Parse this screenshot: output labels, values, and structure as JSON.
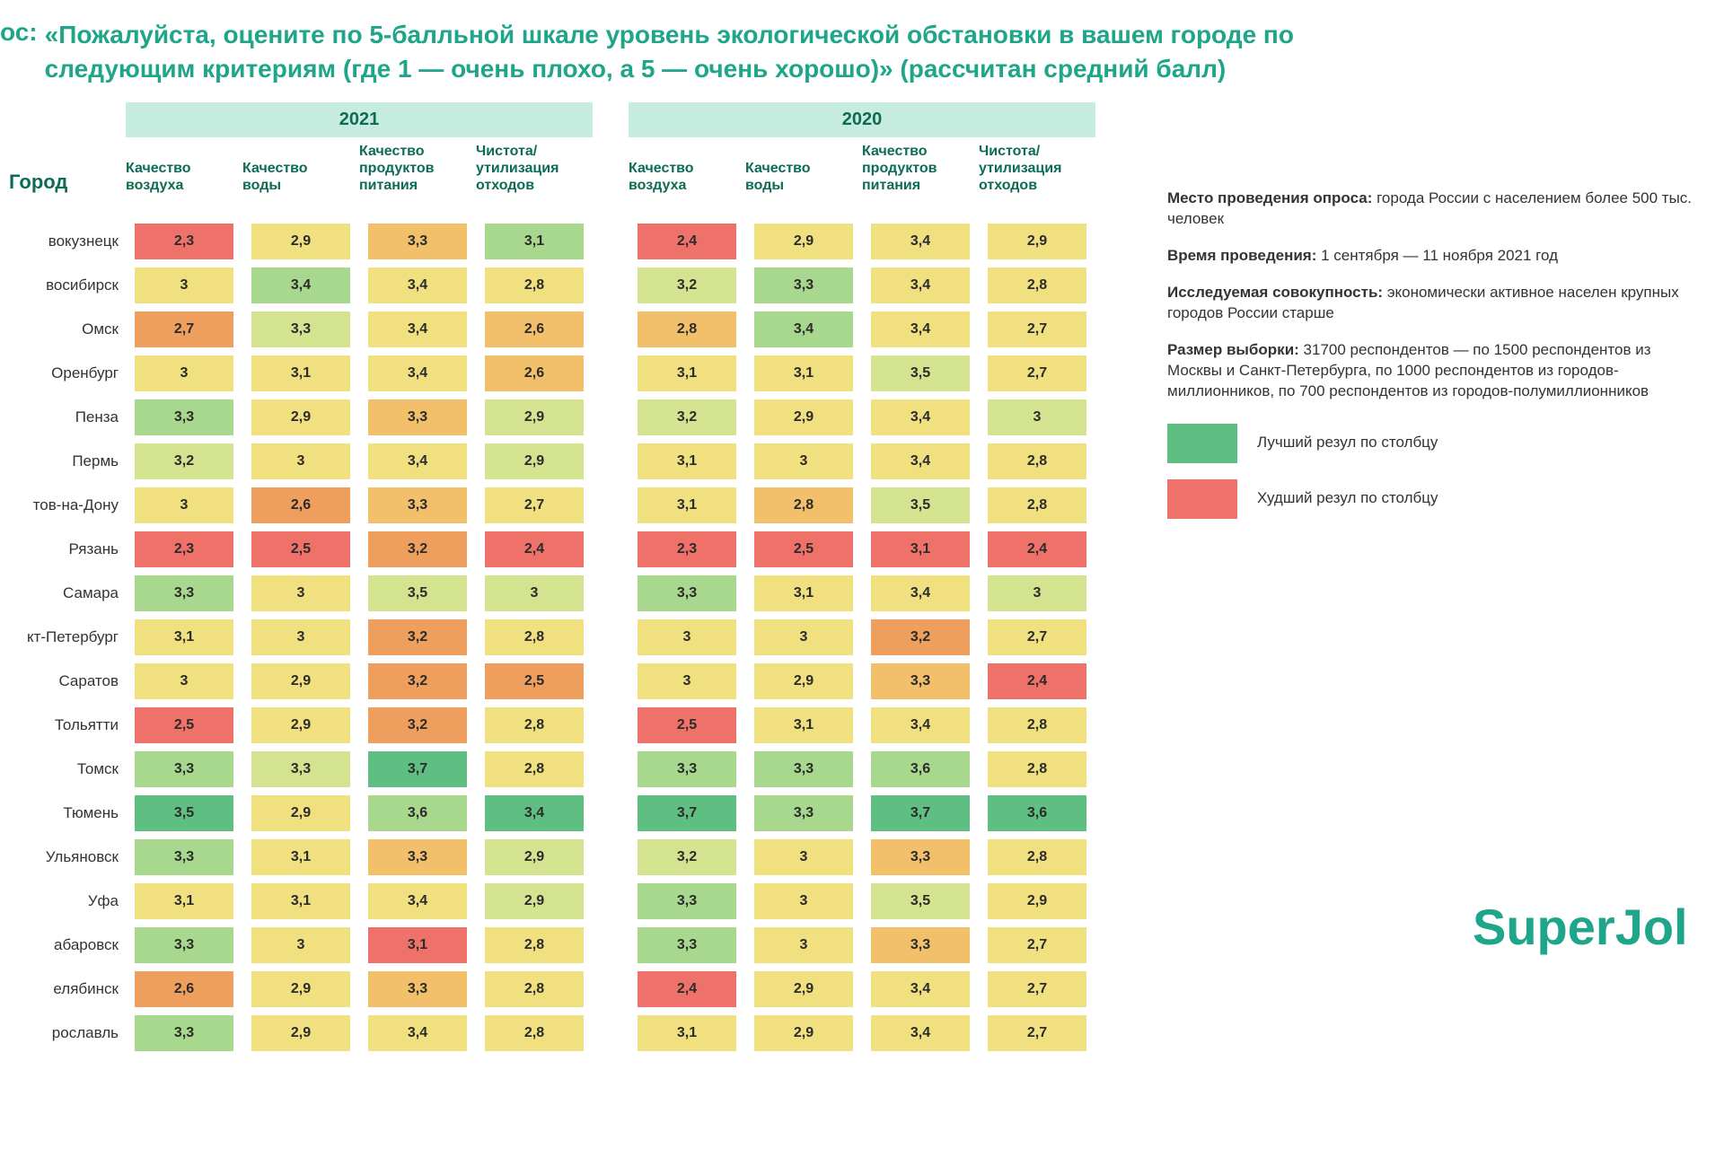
{
  "title_prefix": "ос:",
  "title_text": "«Пожалуйста, оцените по 5-балльной шкале уровень экологической обстановки в вашем городе по следующим критериям (где 1 — очень плохо, а 5 — очень хорошо)» (рассчитан средний балл)",
  "city_header": "Город",
  "years": [
    "2021",
    "2020"
  ],
  "columns": [
    "Качество воздуха",
    "Качество воды",
    "Качество продуктов питания",
    "Чистота/ утилизация отходов"
  ],
  "palette": {
    "best": "#5fbf82",
    "good": "#a8d88e",
    "mid_good": "#d4e38f",
    "mid": "#f0e080",
    "mid_bad": "#f2c06a",
    "bad": "#ef9f5d",
    "worst": "#ef726a"
  },
  "cities": [
    "вокузнецк",
    "восибирск",
    "Омск",
    "Оренбург",
    "Пенза",
    "Пермь",
    "тов-на-Дону",
    "Рязань",
    "Самара",
    "кт-Петербург",
    "Саратов",
    "Тольятти",
    "Томск",
    "Тюмень",
    "Ульяновск",
    "Уфа",
    "абаровск",
    "елябинск",
    "рославль"
  ],
  "data": [
    {
      "y21": [
        [
          "2,3",
          "worst"
        ],
        [
          "2,9",
          "mid"
        ],
        [
          "3,3",
          "mid_bad"
        ],
        [
          "3,1",
          "good"
        ]
      ],
      "y20": [
        [
          "2,4",
          "worst"
        ],
        [
          "2,9",
          "mid"
        ],
        [
          "3,4",
          "mid"
        ],
        [
          "2,9",
          "mid"
        ]
      ]
    },
    {
      "y21": [
        [
          "3",
          "mid"
        ],
        [
          "3,4",
          "good"
        ],
        [
          "3,4",
          "mid"
        ],
        [
          "2,8",
          "mid"
        ]
      ],
      "y20": [
        [
          "3,2",
          "mid_good"
        ],
        [
          "3,3",
          "good"
        ],
        [
          "3,4",
          "mid"
        ],
        [
          "2,8",
          "mid"
        ]
      ]
    },
    {
      "y21": [
        [
          "2,7",
          "bad"
        ],
        [
          "3,3",
          "mid_good"
        ],
        [
          "3,4",
          "mid"
        ],
        [
          "2,6",
          "mid_bad"
        ]
      ],
      "y20": [
        [
          "2,8",
          "mid_bad"
        ],
        [
          "3,4",
          "good"
        ],
        [
          "3,4",
          "mid"
        ],
        [
          "2,7",
          "mid"
        ]
      ]
    },
    {
      "y21": [
        [
          "3",
          "mid"
        ],
        [
          "3,1",
          "mid"
        ],
        [
          "3,4",
          "mid"
        ],
        [
          "2,6",
          "mid_bad"
        ]
      ],
      "y20": [
        [
          "3,1",
          "mid"
        ],
        [
          "3,1",
          "mid"
        ],
        [
          "3,5",
          "mid_good"
        ],
        [
          "2,7",
          "mid"
        ]
      ]
    },
    {
      "y21": [
        [
          "3,3",
          "good"
        ],
        [
          "2,9",
          "mid"
        ],
        [
          "3,3",
          "mid_bad"
        ],
        [
          "2,9",
          "mid_good"
        ]
      ],
      "y20": [
        [
          "3,2",
          "mid_good"
        ],
        [
          "2,9",
          "mid"
        ],
        [
          "3,4",
          "mid"
        ],
        [
          "3",
          "mid_good"
        ]
      ]
    },
    {
      "y21": [
        [
          "3,2",
          "mid_good"
        ],
        [
          "3",
          "mid"
        ],
        [
          "3,4",
          "mid"
        ],
        [
          "2,9",
          "mid_good"
        ]
      ],
      "y20": [
        [
          "3,1",
          "mid"
        ],
        [
          "3",
          "mid"
        ],
        [
          "3,4",
          "mid"
        ],
        [
          "2,8",
          "mid"
        ]
      ]
    },
    {
      "y21": [
        [
          "3",
          "mid"
        ],
        [
          "2,6",
          "bad"
        ],
        [
          "3,3",
          "mid_bad"
        ],
        [
          "2,7",
          "mid"
        ]
      ],
      "y20": [
        [
          "3,1",
          "mid"
        ],
        [
          "2,8",
          "mid_bad"
        ],
        [
          "3,5",
          "mid_good"
        ],
        [
          "2,8",
          "mid"
        ]
      ]
    },
    {
      "y21": [
        [
          "2,3",
          "worst"
        ],
        [
          "2,5",
          "worst"
        ],
        [
          "3,2",
          "bad"
        ],
        [
          "2,4",
          "worst"
        ]
      ],
      "y20": [
        [
          "2,3",
          "worst"
        ],
        [
          "2,5",
          "worst"
        ],
        [
          "3,1",
          "worst"
        ],
        [
          "2,4",
          "worst"
        ]
      ]
    },
    {
      "y21": [
        [
          "3,3",
          "good"
        ],
        [
          "3",
          "mid"
        ],
        [
          "3,5",
          "mid_good"
        ],
        [
          "3",
          "mid_good"
        ]
      ],
      "y20": [
        [
          "3,3",
          "good"
        ],
        [
          "3,1",
          "mid"
        ],
        [
          "3,4",
          "mid"
        ],
        [
          "3",
          "mid_good"
        ]
      ]
    },
    {
      "y21": [
        [
          "3,1",
          "mid"
        ],
        [
          "3",
          "mid"
        ],
        [
          "3,2",
          "bad"
        ],
        [
          "2,8",
          "mid"
        ]
      ],
      "y20": [
        [
          "3",
          "mid"
        ],
        [
          "3",
          "mid"
        ],
        [
          "3,2",
          "bad"
        ],
        [
          "2,7",
          "mid"
        ]
      ]
    },
    {
      "y21": [
        [
          "3",
          "mid"
        ],
        [
          "2,9",
          "mid"
        ],
        [
          "3,2",
          "bad"
        ],
        [
          "2,5",
          "bad"
        ]
      ],
      "y20": [
        [
          "3",
          "mid"
        ],
        [
          "2,9",
          "mid"
        ],
        [
          "3,3",
          "mid_bad"
        ],
        [
          "2,4",
          "worst"
        ]
      ]
    },
    {
      "y21": [
        [
          "2,5",
          "worst"
        ],
        [
          "2,9",
          "mid"
        ],
        [
          "3,2",
          "bad"
        ],
        [
          "2,8",
          "mid"
        ]
      ],
      "y20": [
        [
          "2,5",
          "worst"
        ],
        [
          "3,1",
          "mid"
        ],
        [
          "3,4",
          "mid"
        ],
        [
          "2,8",
          "mid"
        ]
      ]
    },
    {
      "y21": [
        [
          "3,3",
          "good"
        ],
        [
          "3,3",
          "mid_good"
        ],
        [
          "3,7",
          "best"
        ],
        [
          "2,8",
          "mid"
        ]
      ],
      "y20": [
        [
          "3,3",
          "good"
        ],
        [
          "3,3",
          "good"
        ],
        [
          "3,6",
          "good"
        ],
        [
          "2,8",
          "mid"
        ]
      ]
    },
    {
      "y21": [
        [
          "3,5",
          "best"
        ],
        [
          "2,9",
          "mid"
        ],
        [
          "3,6",
          "good"
        ],
        [
          "3,4",
          "best"
        ]
      ],
      "y20": [
        [
          "3,7",
          "best"
        ],
        [
          "3,3",
          "good"
        ],
        [
          "3,7",
          "best"
        ],
        [
          "3,6",
          "best"
        ]
      ]
    },
    {
      "y21": [
        [
          "3,3",
          "good"
        ],
        [
          "3,1",
          "mid"
        ],
        [
          "3,3",
          "mid_bad"
        ],
        [
          "2,9",
          "mid_good"
        ]
      ],
      "y20": [
        [
          "3,2",
          "mid_good"
        ],
        [
          "3",
          "mid"
        ],
        [
          "3,3",
          "mid_bad"
        ],
        [
          "2,8",
          "mid"
        ]
      ]
    },
    {
      "y21": [
        [
          "3,1",
          "mid"
        ],
        [
          "3,1",
          "mid"
        ],
        [
          "3,4",
          "mid"
        ],
        [
          "2,9",
          "mid_good"
        ]
      ],
      "y20": [
        [
          "3,3",
          "good"
        ],
        [
          "3",
          "mid"
        ],
        [
          "3,5",
          "mid_good"
        ],
        [
          "2,9",
          "mid"
        ]
      ]
    },
    {
      "y21": [
        [
          "3,3",
          "good"
        ],
        [
          "3",
          "mid"
        ],
        [
          "3,1",
          "worst"
        ],
        [
          "2,8",
          "mid"
        ]
      ],
      "y20": [
        [
          "3,3",
          "good"
        ],
        [
          "3",
          "mid"
        ],
        [
          "3,3",
          "mid_bad"
        ],
        [
          "2,7",
          "mid"
        ]
      ]
    },
    {
      "y21": [
        [
          "2,6",
          "bad"
        ],
        [
          "2,9",
          "mid"
        ],
        [
          "3,3",
          "mid_bad"
        ],
        [
          "2,8",
          "mid"
        ]
      ],
      "y20": [
        [
          "2,4",
          "worst"
        ],
        [
          "2,9",
          "mid"
        ],
        [
          "3,4",
          "mid"
        ],
        [
          "2,7",
          "mid"
        ]
      ]
    },
    {
      "y21": [
        [
          "3,3",
          "good"
        ],
        [
          "2,9",
          "mid"
        ],
        [
          "3,4",
          "mid"
        ],
        [
          "2,8",
          "mid"
        ]
      ],
      "y20": [
        [
          "3,1",
          "mid"
        ],
        [
          "2,9",
          "mid"
        ],
        [
          "3,4",
          "mid"
        ],
        [
          "2,7",
          "mid"
        ]
      ]
    }
  ],
  "sidebar": {
    "loc_label": "Место проведения опроса:",
    "loc_text": "города России с населением более 500 тыс. человек",
    "time_label": "Время проведения:",
    "time_text": "1 сентября — 11 ноября 2021 год",
    "pop_label": "Исследуемая совокупность:",
    "pop_text": "экономически активное населен крупных городов России старше",
    "size_label": "Размер выборки:",
    "size_text": "31700 респондентов — по 1500 респондентов из Москвы и Санкт-Петербурга, по 1000 респондентов из городов-миллионников, по 700 респондентов из городов-полумиллионников"
  },
  "legend": {
    "best_color": "#5fbf82",
    "best_text": "Лучший резул по столбцу",
    "worst_color": "#ef726a",
    "worst_text": "Худший резул по столбцу"
  },
  "brand": "SuperJol"
}
